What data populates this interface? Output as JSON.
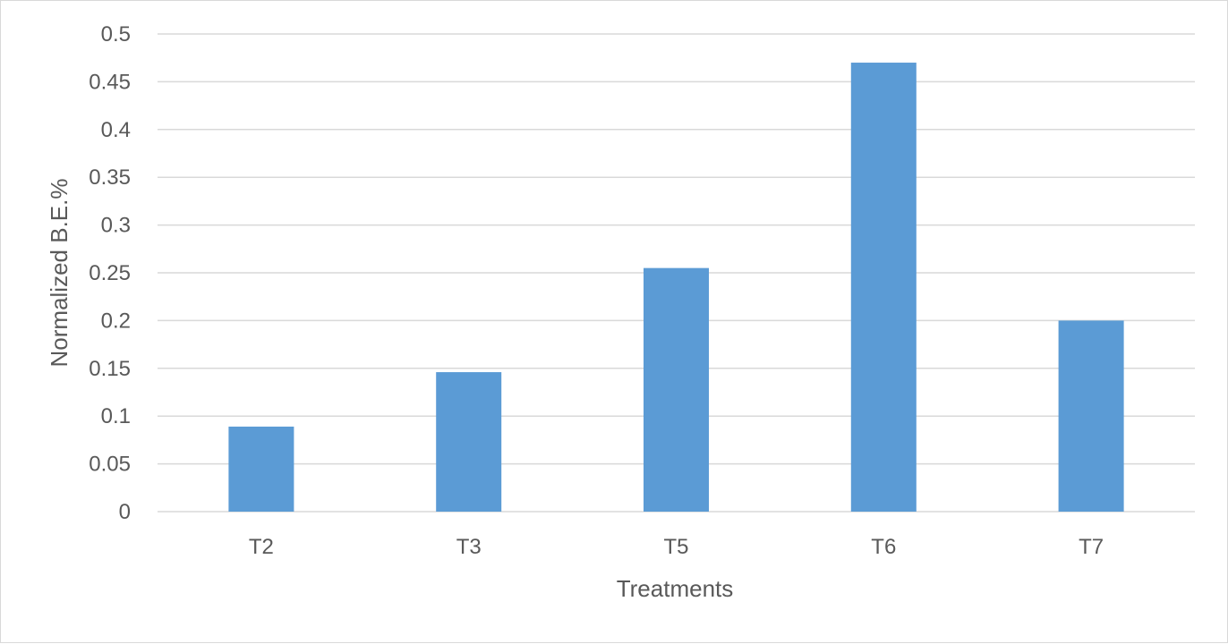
{
  "chart_data": {
    "type": "bar",
    "categories": [
      "T2",
      "T3",
      "T5",
      "T6",
      "T7"
    ],
    "values": [
      0.089,
      0.146,
      0.255,
      0.47,
      0.2
    ],
    "title": "",
    "xlabel": "Treatments",
    "ylabel": "Normalized B.E.%",
    "ylim": [
      0,
      0.5
    ],
    "yticks": [
      "0",
      "0.05",
      "0.1",
      "0.15",
      "0.2",
      "0.25",
      "0.3",
      "0.35",
      "0.4",
      "0.45",
      "0.5"
    ],
    "grid": true,
    "legend": "none",
    "bar_color": "#5b9bd5",
    "grid_color": "#d9d9d9",
    "text_color": "#595959"
  }
}
